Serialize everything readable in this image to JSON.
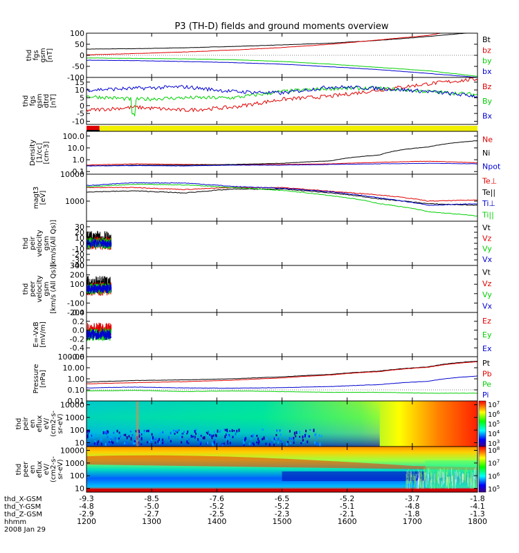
{
  "title": "P3 (TH-D) fields and ground moments overview",
  "colors": {
    "black": "#000000",
    "red": "#e00000",
    "green": "#00d000",
    "blue": "#0000d0",
    "yellow": "#f0f000"
  },
  "chart_data": [
    {
      "type": "line",
      "panel": "fgs-gsm",
      "ylabel": [
        "thd",
        "fgs",
        "gsm",
        "[nT]"
      ],
      "ylim": [
        -100,
        100
      ],
      "yticks": [
        "100",
        "50",
        "0",
        "-50",
        "-100"
      ],
      "series": [
        {
          "name": "Bt",
          "color": "black",
          "values": [
            28,
            30,
            34,
            40,
            47,
            55,
            68,
            85,
            105
          ]
        },
        {
          "name": "bz",
          "color": "red",
          "values": [
            2,
            8,
            15,
            24,
            35,
            50,
            70,
            90,
            130
          ]
        },
        {
          "name": "by",
          "color": "green",
          "values": [
            -12,
            -14,
            -16,
            -20,
            -28,
            -40,
            -55,
            -70,
            -95
          ]
        },
        {
          "name": "bx",
          "color": "blue",
          "values": [
            -22,
            -24,
            -28,
            -33,
            -40,
            -52,
            -65,
            -82,
            -100
          ]
        }
      ]
    },
    {
      "type": "line",
      "panel": "fgs-gsm-detrend",
      "ylabel": [
        "thd",
        "fgs",
        "gsm",
        "dtrd",
        "[nT]"
      ],
      "ylim": [
        -12,
        18
      ],
      "yticks": [
        "15",
        "10",
        "5",
        "0",
        "-5",
        "-10"
      ],
      "series": [
        {
          "name": "Bz",
          "color": "red",
          "values": [
            -3,
            -1,
            -3,
            -1,
            4,
            6,
            10,
            14,
            17
          ]
        },
        {
          "name": "By",
          "color": "green",
          "values": [
            6,
            4,
            5,
            5,
            9,
            11,
            11,
            9,
            7
          ]
        },
        {
          "name": "Bx",
          "color": "blue",
          "values": [
            10,
            11,
            12,
            9,
            8,
            12,
            11,
            9,
            6
          ]
        }
      ]
    },
    {
      "type": "bar",
      "panel": "coverage-bar",
      "segments": [
        {
          "color": "red",
          "from": 1200,
          "to": 1220
        },
        {
          "color": "yellow",
          "from": 1220,
          "to": 1800
        }
      ]
    },
    {
      "type": "line",
      "panel": "density",
      "ylabel": [
        "Density",
        "[1/cc]",
        "[cm^-3]"
      ],
      "scale": "log",
      "ylim": [
        0.06,
        250
      ],
      "yticks": [
        "100.0",
        "10.0",
        "1.0",
        "0.1"
      ],
      "series": [
        {
          "name": "Ne",
          "color": "red",
          "values": [
            0.35,
            0.45,
            0.4,
            0.38,
            0.4,
            0.45,
            0.6,
            0.75,
            0.55
          ]
        },
        {
          "name": "Ni",
          "color": "black",
          "values": [
            0.3,
            0.35,
            0.35,
            0.4,
            0.5,
            0.8,
            2.5,
            12,
            40
          ]
        },
        {
          "name": "Npot",
          "color": "blue",
          "values": [
            0.3,
            0.32,
            0.3,
            0.35,
            0.35,
            0.4,
            0.45,
            0.5,
            0.45
          ]
        }
      ]
    },
    {
      "type": "line",
      "panel": "temperature",
      "ylabel": [
        "magt3",
        "[eV]"
      ],
      "scale": "log",
      "ylim": [
        180,
        10000
      ],
      "yticks": [
        "10000",
        "1000"
      ],
      "series": [
        {
          "name": "Te⊥",
          "color": "red",
          "values": [
            3200,
            3200,
            2700,
            3200,
            3200,
            2300,
            1700,
            1000,
            1100
          ]
        },
        {
          "name": "Te||",
          "color": "black",
          "values": [
            2200,
            2400,
            2000,
            2800,
            2800,
            2000,
            1200,
            800,
            700
          ]
        },
        {
          "name": "Ti⊥",
          "color": "blue",
          "values": [
            3800,
            4800,
            4700,
            3500,
            3000,
            2200,
            1300,
            700,
            800
          ]
        },
        {
          "name": "Ti||",
          "color": "green",
          "values": [
            3400,
            4200,
            4000,
            3200,
            2500,
            1600,
            800,
            400,
            280
          ]
        }
      ]
    },
    {
      "type": "line",
      "panel": "peir-velocity",
      "ylabel": [
        "thd",
        "peir",
        "velocity",
        "gsm",
        "[km/s(All Qs)]"
      ],
      "ylim": [
        -40,
        40
      ],
      "yticks": [
        "30",
        "20",
        "10",
        "0",
        "-10",
        "-20",
        "-30",
        "-40"
      ],
      "xrange": [
        1200,
        1238
      ],
      "series": [
        {
          "name": "Vt",
          "color": "black"
        },
        {
          "name": "Vz",
          "color": "red"
        },
        {
          "name": "Vy",
          "color": "green"
        },
        {
          "name": "Vx",
          "color": "blue"
        }
      ]
    },
    {
      "type": "line",
      "panel": "peer-velocity",
      "ylabel": [
        "thd",
        "peer",
        "velocity",
        "gsm",
        "[km/s (All Qs)]"
      ],
      "ylim": [
        -200,
        300
      ],
      "yticks": [
        "300",
        "200",
        "100",
        "0",
        "-100",
        "-200"
      ],
      "xrange": [
        1200,
        1238
      ],
      "series": [
        {
          "name": "Vt",
          "color": "black"
        },
        {
          "name": "Vz",
          "color": "red"
        },
        {
          "name": "Vy",
          "color": "green"
        },
        {
          "name": "Vx",
          "color": "blue"
        }
      ]
    },
    {
      "type": "line",
      "panel": "efield",
      "ylabel": [
        "E=-VxB",
        "[mV/m]"
      ],
      "ylim": [
        -0.6,
        0.4
      ],
      "yticks": [
        "0.4",
        "0.2",
        "0.0",
        "-0.2",
        "-0.4",
        "-0.6"
      ],
      "xrange": [
        1200,
        1238
      ],
      "series": [
        {
          "name": "Ez",
          "color": "red"
        },
        {
          "name": "Ey",
          "color": "green"
        },
        {
          "name": "Ex",
          "color": "blue"
        }
      ]
    },
    {
      "type": "line",
      "panel": "pressure",
      "ylabel": [
        "Pressure",
        "[nPa]"
      ],
      "scale": "log",
      "ylim": [
        0.01,
        100
      ],
      "yticks": [
        "100.00",
        "10.00",
        "1.00",
        "0.10",
        "0.01"
      ],
      "series": [
        {
          "name": "Pt",
          "color": "black",
          "values": [
            0.5,
            0.7,
            0.8,
            1,
            1.5,
            2.5,
            5,
            12,
            40
          ]
        },
        {
          "name": "Pb",
          "color": "red",
          "values": [
            0.35,
            0.45,
            0.55,
            0.75,
            1.2,
            2.2,
            4.5,
            11,
            35
          ]
        },
        {
          "name": "Pe",
          "color": "green",
          "values": [
            0.08,
            0.09,
            0.07,
            0.08,
            0.07,
            0.06,
            0.06,
            0.05,
            0.05
          ]
        },
        {
          "name": "Pi",
          "color": "blue",
          "values": [
            0.15,
            0.18,
            0.15,
            0.14,
            0.16,
            0.2,
            0.3,
            0.6,
            1.8
          ]
        }
      ]
    },
    {
      "type": "heatmap",
      "panel": "peir-eflux",
      "ylabel": [
        "thd",
        "peir",
        "en",
        "eflux",
        "eV/",
        "(cm^2-s-",
        "sr-eV)"
      ],
      "scale": "log",
      "ylim": [
        5,
        20000
      ],
      "yticks": [
        "10000",
        "1000",
        "100",
        "10"
      ],
      "colorbar": [
        "10^7",
        "10^6",
        "10^5",
        "10^4",
        "10^3"
      ]
    },
    {
      "type": "heatmap",
      "panel": "peer-eflux",
      "ylabel": [
        "thd",
        "peer",
        "en",
        "eflux",
        "eV/",
        "(cm^2-s-",
        "sr-eV)"
      ],
      "scale": "log",
      "ylim": [
        5,
        20000
      ],
      "yticks": [
        "10000",
        "1000",
        "100",
        "10"
      ],
      "colorbar": [
        "10^8",
        "10^7",
        "10^6",
        "10^5"
      ]
    }
  ],
  "xaxis": {
    "ticks": [
      "1200",
      "1300",
      "1400",
      "1500",
      "1600",
      "1700",
      "1800"
    ],
    "rows": [
      {
        "label": "thd_X-GSM",
        "values": [
          "-9.3",
          "-8.5",
          "-7.6",
          "-6.5",
          "-5.2",
          "-3.7",
          "-1.8"
        ]
      },
      {
        "label": "thd_Y-GSM",
        "values": [
          "-4.8",
          "-5.0",
          "-5.2",
          "-5.2",
          "-5.1",
          "-4.8",
          "-4.1"
        ]
      },
      {
        "label": "thd_Z-GSM",
        "values": [
          "-2.9",
          "-2.7",
          "-2.5",
          "-2.3",
          "-2.1",
          "-1.8",
          "-1.3"
        ]
      },
      {
        "label": "hhmm",
        "values": [
          "1200",
          "1300",
          "1400",
          "1500",
          "1600",
          "1700",
          "1800"
        ]
      }
    ],
    "date": "2008 Jan 29"
  }
}
